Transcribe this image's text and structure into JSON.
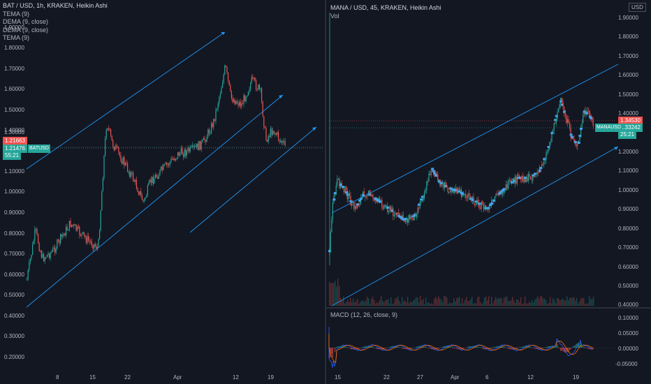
{
  "left": {
    "title": {
      "symbol": "BAT / USD, 1h, KRAKEN, Heikin Ashi",
      "indicators": [
        "TEMA (9)",
        "DEMA (9, close)",
        "DEMA (9, close)",
        "TEMA (9)"
      ]
    },
    "y_ticks": [
      "1.90000",
      "1.80000",
      "1.70000",
      "1.60000",
      "1.50000",
      "1.40000",
      "1.30000",
      "1.10000",
      "1.00000",
      "0.90000",
      "0.80000",
      "0.70000",
      "0.60000",
      "0.50000",
      "0.40000",
      "0.30000",
      "0.20000"
    ],
    "x_ticks": [
      "8",
      "15",
      "22",
      "Apr",
      "12",
      "19"
    ],
    "price_red": "1.21663",
    "price_green": "1.21476",
    "countdown": "55:21",
    "symbol_tag": "BATUSD",
    "hide_button": "USD",
    "hide_prefix": "I0"
  },
  "right": {
    "title": {
      "symbol": "MANA / USD, 45, KRAKEN, Heikin Ashi",
      "indicators": [
        "Vol"
      ]
    },
    "currency_badge": "USD",
    "y_ticks": [
      "1.90000",
      "1.80000",
      "1.70000",
      "1.60000",
      "1.50000",
      "1.40000",
      "1.20000",
      "1.10000",
      "1.00000",
      "0.90000",
      "0.80000",
      "0.70000",
      "0.60000",
      "0.50000",
      "0.40000"
    ],
    "macd_title": "MACD (12, 26, close, 9)",
    "macd_ticks": [
      "0.10000",
      "0.05000",
      "0.00000",
      "-0.05000"
    ],
    "x_ticks": [
      "15",
      "22",
      "27",
      "Apr",
      "6",
      "12",
      "19"
    ],
    "price_red": "1.34530",
    "price_green": "1.33242",
    "countdown": "25:21",
    "symbol_tag": "MANAUSD"
  },
  "colors": {
    "background": "#131722",
    "up": "#26a69a",
    "down": "#ef5350",
    "trendline": "#2196f3",
    "axis_text": "#b2b5be",
    "tema_blue": "#42a5f5"
  }
}
